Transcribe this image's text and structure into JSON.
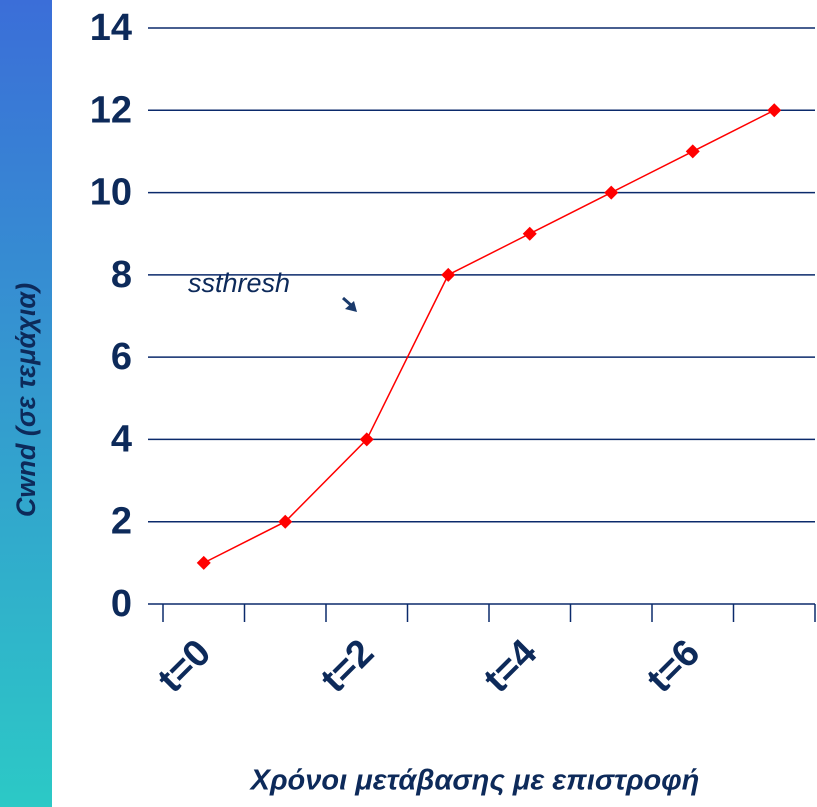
{
  "chart_data": {
    "type": "line",
    "categories": [
      "t=0",
      null,
      "t=2",
      null,
      "t=4",
      null,
      "t=6",
      null
    ],
    "series": [
      {
        "name": "Cwnd",
        "color": "#ff0000",
        "values": [
          1,
          2,
          4,
          8,
          9,
          10,
          11,
          12
        ]
      }
    ],
    "ylim": [
      0,
      14
    ],
    "yticks": [
      0,
      2,
      4,
      6,
      8,
      10,
      12,
      14
    ],
    "grid": true,
    "y_label": "Cwnd (σε τεμάχια)",
    "x_label": "Χρόνοι μετάβασης με επιστροφή",
    "annotation": "ssthresh"
  }
}
